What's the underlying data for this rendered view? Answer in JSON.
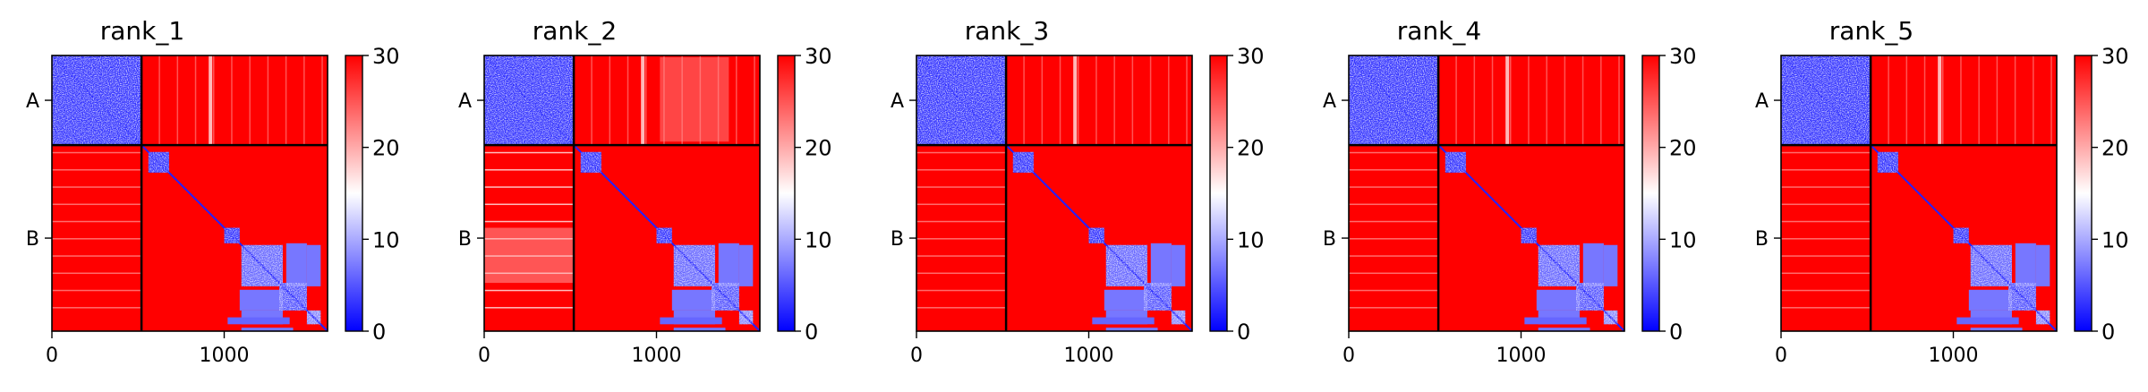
{
  "figure": {
    "panels": [
      {
        "title": "rank_1"
      },
      {
        "title": "rank_2"
      },
      {
        "title": "rank_3"
      },
      {
        "title": "rank_4"
      },
      {
        "title": "rank_5"
      }
    ]
  },
  "chart_data": {
    "type": "heatmap",
    "panels": [
      "rank_1",
      "rank_2",
      "rank_3",
      "rank_4",
      "rank_5"
    ],
    "matrix_size": 1600,
    "chain_boundary": 520,
    "chains": [
      {
        "label": "A",
        "start": 0,
        "end": 520
      },
      {
        "label": "B",
        "start": 520,
        "end": 1600
      }
    ],
    "x_ticks": [
      0,
      1000
    ],
    "x_tick_labels": [
      "0",
      "1000"
    ],
    "y_tick_labels": [
      "A",
      "B"
    ],
    "colorbar": {
      "min": 0,
      "max": 30,
      "ticks": [
        0,
        10,
        20,
        30
      ],
      "tick_labels": [
        "0",
        "10",
        "20",
        "30"
      ],
      "colormap": "bwr",
      "colors": {
        "low": "#0000ff",
        "mid": "#ffffff",
        "high": "#ff0000"
      }
    },
    "low_error_blocks": [
      {
        "range": [
          0,
          520
        ],
        "value": 3
      },
      {
        "range": [
          560,
          680
        ],
        "value": 3
      },
      {
        "range": [
          1000,
          1090
        ],
        "value": 3
      },
      {
        "range": [
          1100,
          1340
        ],
        "value": 6
      },
      {
        "range": [
          1320,
          1480
        ],
        "value": 5
      },
      {
        "range": [
          1480,
          1560
        ],
        "value": 8
      }
    ],
    "grid": false
  }
}
